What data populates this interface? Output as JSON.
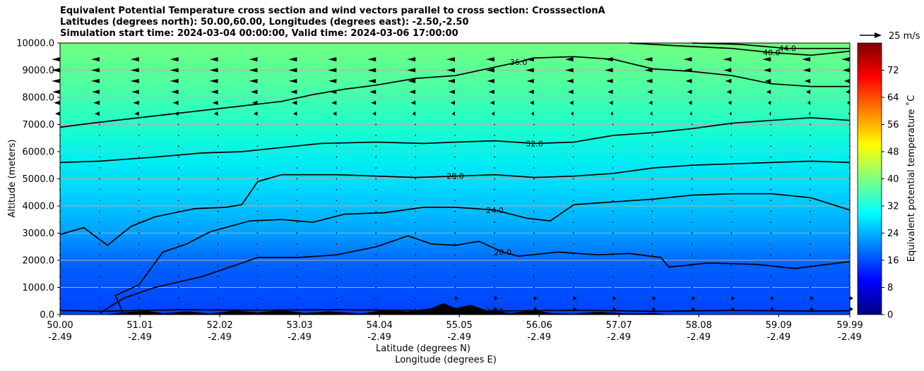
{
  "chart_data": {
    "type": "heatmap",
    "title_lines": [
      "Equivalent Potential Temperature cross section and wind vectors parallel to cross section: CrosssectionA",
      "Latitudes (degrees north): 50.00,60.00, Longitudes (degrees east): -2.50,-2.50",
      "Simulation start time: 2024-03-04 00:00:00, Valid time: 2024-03-06 17:00:00"
    ],
    "ylabel": "Altitude (meters)",
    "xlabel_1": "Latitude (degrees N)",
    "xlabel_2": "Longitude (degrees E)",
    "ylim": [
      0,
      10000
    ],
    "xlim": [
      50.0,
      59.99
    ],
    "yticks": [
      "0.0",
      "1000.0",
      "2000.0",
      "3000.0",
      "4000.0",
      "5000.0",
      "6000.0",
      "7000.0",
      "8000.0",
      "9000.0",
      "10000.0"
    ],
    "xticks_lat": [
      "50.00",
      "51.01",
      "52.02",
      "53.03",
      "54.04",
      "55.05",
      "56.06",
      "57.07",
      "58.08",
      "59.09",
      "59.99"
    ],
    "xticks_lon": [
      "-2.49",
      "-2.49",
      "-2.49",
      "-2.49",
      "-2.49",
      "-2.49",
      "-2.49",
      "-2.49",
      "-2.49",
      "-2.49",
      "-2.49"
    ],
    "grid": "horizontal",
    "colorbar": {
      "label": "Equivalent potential temperature $^\\circ$C",
      "label_display": "Equivalent potential temperature ˚C",
      "range": [
        0,
        80
      ],
      "ticks": [
        "0",
        "8",
        "16",
        "24",
        "32",
        "40",
        "48",
        "56",
        "64",
        "72"
      ],
      "colormap": "jet"
    },
    "quiver_key": {
      "label": "25 m/s"
    },
    "contour_levels": [
      {
        "value": 16.0,
        "label": "16.0",
        "points": [
          [
            50.0,
            150
          ],
          [
            50.5,
            120
          ],
          [
            51.5,
            180
          ],
          [
            52.5,
            160
          ],
          [
            53.5,
            180
          ],
          [
            54.5,
            150
          ],
          [
            55.5,
            130
          ],
          [
            56.5,
            160
          ],
          [
            57.5,
            120
          ],
          [
            58.5,
            150
          ],
          [
            59.5,
            130
          ],
          [
            59.99,
            140
          ]
        ]
      },
      {
        "value": 20.0,
        "label": "20.0",
        "points": [
          [
            50.5,
            50
          ],
          [
            50.8,
            600
          ],
          [
            51.2,
            1000
          ],
          [
            51.8,
            1400
          ],
          [
            52.5,
            2100
          ],
          [
            53.0,
            2100
          ],
          [
            53.5,
            2200
          ],
          [
            54.0,
            2500
          ],
          [
            54.4,
            2900
          ],
          [
            54.7,
            2600
          ],
          [
            55.0,
            2550
          ],
          [
            55.3,
            2700
          ],
          [
            55.6,
            2300
          ],
          [
            55.8,
            2150
          ],
          [
            56.3,
            2300
          ],
          [
            56.8,
            2200
          ],
          [
            57.2,
            2250
          ],
          [
            57.6,
            2100
          ],
          [
            57.7,
            1750
          ],
          [
            58.2,
            1900
          ],
          [
            58.8,
            1850
          ],
          [
            59.3,
            1700
          ],
          [
            59.99,
            1950
          ]
        ]
      },
      {
        "value": 24.0,
        "label": "24.0",
        "points": [
          [
            50.8,
            50
          ],
          [
            50.7,
            700
          ],
          [
            51.0,
            1100
          ],
          [
            51.3,
            2300
          ],
          [
            51.6,
            2600
          ],
          [
            51.9,
            3050
          ],
          [
            52.4,
            3450
          ],
          [
            52.8,
            3500
          ],
          [
            53.2,
            3400
          ],
          [
            53.6,
            3700
          ],
          [
            54.1,
            3750
          ],
          [
            54.6,
            3950
          ],
          [
            55.0,
            3950
          ],
          [
            55.5,
            3850
          ],
          [
            55.9,
            3550
          ],
          [
            56.2,
            3450
          ],
          [
            56.5,
            4050
          ],
          [
            57.0,
            4150
          ],
          [
            57.5,
            4250
          ],
          [
            58.0,
            4400
          ],
          [
            58.5,
            4450
          ],
          [
            59.0,
            4450
          ],
          [
            59.5,
            4300
          ],
          [
            59.99,
            3850
          ]
        ]
      },
      {
        "value": 28.0,
        "label": "28.0",
        "points": [
          [
            50.0,
            2950
          ],
          [
            50.3,
            3200
          ],
          [
            50.6,
            2550
          ],
          [
            50.9,
            3250
          ],
          [
            51.2,
            3600
          ],
          [
            51.7,
            3900
          ],
          [
            52.1,
            3950
          ],
          [
            52.3,
            4050
          ],
          [
            52.5,
            4900
          ],
          [
            52.8,
            5150
          ],
          [
            53.5,
            5150
          ],
          [
            54.5,
            5050
          ],
          [
            55.0,
            5100
          ],
          [
            55.5,
            5150
          ],
          [
            56.0,
            5050
          ],
          [
            56.5,
            5100
          ],
          [
            57.0,
            5200
          ],
          [
            57.5,
            5400
          ],
          [
            58.0,
            5500
          ],
          [
            58.5,
            5550
          ],
          [
            59.0,
            5600
          ],
          [
            59.5,
            5650
          ],
          [
            59.99,
            5600
          ]
        ]
      },
      {
        "value": 32.0,
        "label": "32.0",
        "points": [
          [
            50.0,
            5600
          ],
          [
            50.5,
            5650
          ],
          [
            51.2,
            5800
          ],
          [
            51.8,
            5950
          ],
          [
            52.3,
            6000
          ],
          [
            52.8,
            6150
          ],
          [
            53.3,
            6300
          ],
          [
            54.0,
            6350
          ],
          [
            54.6,
            6300
          ],
          [
            55.0,
            6350
          ],
          [
            55.5,
            6400
          ],
          [
            56.0,
            6300
          ],
          [
            56.5,
            6350
          ],
          [
            57.0,
            6600
          ],
          [
            57.5,
            6700
          ],
          [
            58.0,
            6850
          ],
          [
            58.5,
            7050
          ],
          [
            59.0,
            7150
          ],
          [
            59.5,
            7250
          ],
          [
            59.99,
            7150
          ]
        ]
      },
      {
        "value": 36.0,
        "label": "36.0",
        "points": [
          [
            50.0,
            6900
          ],
          [
            50.4,
            7050
          ],
          [
            51.0,
            7250
          ],
          [
            51.6,
            7450
          ],
          [
            52.2,
            7650
          ],
          [
            52.8,
            7850
          ],
          [
            53.2,
            8100
          ],
          [
            53.6,
            8300
          ],
          [
            54.0,
            8450
          ],
          [
            54.5,
            8700
          ],
          [
            55.0,
            8800
          ],
          [
            55.4,
            9050
          ],
          [
            55.8,
            9300
          ],
          [
            56.0,
            9450
          ],
          [
            56.5,
            9500
          ],
          [
            57.0,
            9400
          ],
          [
            57.5,
            9050
          ],
          [
            58.0,
            8950
          ],
          [
            58.5,
            8800
          ],
          [
            59.0,
            8500
          ],
          [
            59.5,
            8400
          ],
          [
            59.99,
            8400
          ]
        ]
      },
      {
        "value": 40.0,
        "label": "40.0",
        "points": [
          [
            57.2,
            10000
          ],
          [
            57.8,
            9900
          ],
          [
            58.5,
            9800
          ],
          [
            59.0,
            9650
          ],
          [
            59.5,
            9550
          ],
          [
            59.99,
            9700
          ]
        ]
      },
      {
        "value": 44.0,
        "label": "44.0",
        "points": [
          [
            58.0,
            10000
          ],
          [
            58.6,
            9950
          ],
          [
            59.2,
            9800
          ],
          [
            59.99,
            9800
          ]
        ]
      }
    ],
    "terrain": {
      "points": [
        [
          50.0,
          0
        ],
        [
          50.6,
          0
        ],
        [
          50.7,
          60
        ],
        [
          50.9,
          100
        ],
        [
          51.1,
          140
        ],
        [
          51.3,
          50
        ],
        [
          51.6,
          120
        ],
        [
          51.9,
          40
        ],
        [
          52.2,
          150
        ],
        [
          52.5,
          80
        ],
        [
          52.8,
          160
        ],
        [
          53.1,
          60
        ],
        [
          53.4,
          120
        ],
        [
          53.8,
          40
        ],
        [
          54.1,
          160
        ],
        [
          54.4,
          110
        ],
        [
          54.7,
          240
        ],
        [
          54.85,
          420
        ],
        [
          55.0,
          230
        ],
        [
          55.2,
          360
        ],
        [
          55.4,
          150
        ],
        [
          55.7,
          60
        ],
        [
          56.0,
          160
        ],
        [
          56.2,
          60
        ],
        [
          56.5,
          30
        ],
        [
          56.8,
          100
        ],
        [
          57.2,
          40
        ],
        [
          57.5,
          60
        ],
        [
          57.7,
          0
        ],
        [
          59.99,
          0
        ]
      ]
    }
  }
}
